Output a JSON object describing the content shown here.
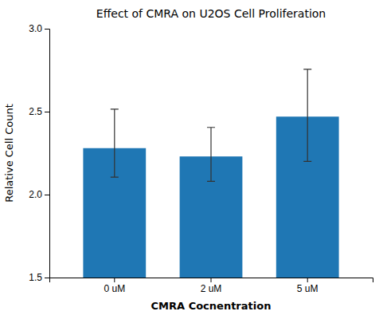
{
  "chart_data": {
    "type": "bar",
    "title": "Effect of CMRA on U2OS Cell Proliferation",
    "xlabel": "CMRA Cocnentration",
    "ylabel": "Relative Cell Count",
    "categories": [
      "0 uM",
      "2 uM",
      "5 uM"
    ],
    "values": [
      2.28,
      2.23,
      2.47
    ],
    "errors_upper": [
      0.235,
      0.175,
      0.285
    ],
    "errors_lower": [
      0.175,
      0.15,
      0.27
    ],
    "ylim": [
      1.5,
      3.0
    ],
    "yticks": [
      1.5,
      {
        "value": 2,
        "label": "2.0"
      },
      2.5,
      {
        "value": 3,
        "label": "3.0"
      }
    ],
    "grid": false
  }
}
